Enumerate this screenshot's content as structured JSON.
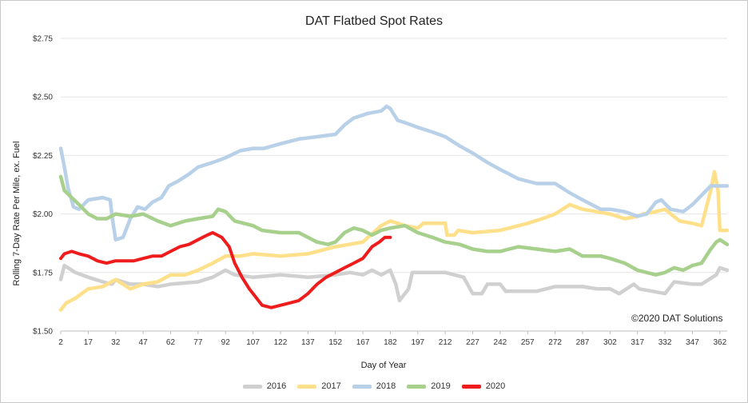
{
  "chart_data": {
    "type": "line",
    "title": "DAT Flatbed Spot Rates",
    "xlabel": "Day of Year",
    "ylabel": "Rolling 7-Day Rate Per Mile, ex. Fuel",
    "copyright": "©2020 DAT Solutions",
    "xlim": [
      2,
      366
    ],
    "ylim": [
      1.5,
      2.75
    ],
    "x_ticks": [
      2,
      17,
      32,
      47,
      62,
      77,
      92,
      107,
      122,
      137,
      152,
      167,
      182,
      197,
      212,
      227,
      242,
      257,
      272,
      287,
      302,
      317,
      332,
      347,
      362
    ],
    "y_ticks": [
      {
        "value": 1.5,
        "label": "$1.50"
      },
      {
        "value": 1.75,
        "label": "$1.75"
      },
      {
        "value": 2.0,
        "label": "$2.00"
      },
      {
        "value": 2.25,
        "label": "$2.25"
      },
      {
        "value": 2.5,
        "label": "$2.50"
      },
      {
        "value": 2.75,
        "label": "$2.75"
      }
    ],
    "grid": "horizontal",
    "legend_position": "bottom",
    "series": [
      {
        "name": "2016",
        "color": "#d0d0d0",
        "points": [
          [
            2,
            1.72
          ],
          [
            4,
            1.78
          ],
          [
            10,
            1.75
          ],
          [
            17,
            1.73
          ],
          [
            25,
            1.71
          ],
          [
            30,
            1.7
          ],
          [
            32,
            1.72
          ],
          [
            40,
            1.7
          ],
          [
            47,
            1.7
          ],
          [
            55,
            1.69
          ],
          [
            62,
            1.7
          ],
          [
            77,
            1.71
          ],
          [
            85,
            1.73
          ],
          [
            92,
            1.76
          ],
          [
            97,
            1.74
          ],
          [
            107,
            1.73
          ],
          [
            122,
            1.74
          ],
          [
            137,
            1.73
          ],
          [
            152,
            1.74
          ],
          [
            160,
            1.75
          ],
          [
            167,
            1.74
          ],
          [
            172,
            1.76
          ],
          [
            177,
            1.74
          ],
          [
            182,
            1.76
          ],
          [
            185,
            1.7
          ],
          [
            187,
            1.63
          ],
          [
            192,
            1.68
          ],
          [
            194,
            1.75
          ],
          [
            212,
            1.75
          ],
          [
            222,
            1.73
          ],
          [
            227,
            1.66
          ],
          [
            232,
            1.66
          ],
          [
            235,
            1.7
          ],
          [
            242,
            1.7
          ],
          [
            245,
            1.67
          ],
          [
            257,
            1.67
          ],
          [
            262,
            1.67
          ],
          [
            272,
            1.69
          ],
          [
            287,
            1.69
          ],
          [
            295,
            1.68
          ],
          [
            302,
            1.68
          ],
          [
            307,
            1.66
          ],
          [
            315,
            1.7
          ],
          [
            318,
            1.68
          ],
          [
            325,
            1.67
          ],
          [
            332,
            1.66
          ],
          [
            337,
            1.71
          ],
          [
            347,
            1.7
          ],
          [
            352,
            1.7
          ],
          [
            360,
            1.74
          ],
          [
            362,
            1.77
          ],
          [
            366,
            1.76
          ]
        ]
      },
      {
        "name": "2017",
        "color": "#ffe08a",
        "points": [
          [
            2,
            1.59
          ],
          [
            5,
            1.62
          ],
          [
            10,
            1.64
          ],
          [
            17,
            1.68
          ],
          [
            25,
            1.69
          ],
          [
            32,
            1.72
          ],
          [
            40,
            1.68
          ],
          [
            47,
            1.7
          ],
          [
            55,
            1.71
          ],
          [
            62,
            1.74
          ],
          [
            70,
            1.74
          ],
          [
            77,
            1.76
          ],
          [
            85,
            1.79
          ],
          [
            92,
            1.82
          ],
          [
            100,
            1.82
          ],
          [
            107,
            1.83
          ],
          [
            122,
            1.82
          ],
          [
            137,
            1.83
          ],
          [
            152,
            1.86
          ],
          [
            167,
            1.88
          ],
          [
            177,
            1.95
          ],
          [
            182,
            1.97
          ],
          [
            190,
            1.95
          ],
          [
            197,
            1.94
          ],
          [
            200,
            1.96
          ],
          [
            212,
            1.96
          ],
          [
            213,
            1.91
          ],
          [
            217,
            1.91
          ],
          [
            219,
            1.93
          ],
          [
            227,
            1.92
          ],
          [
            242,
            1.93
          ],
          [
            257,
            1.96
          ],
          [
            265,
            1.98
          ],
          [
            272,
            2.0
          ],
          [
            280,
            2.04
          ],
          [
            287,
            2.02
          ],
          [
            302,
            2.0
          ],
          [
            310,
            1.98
          ],
          [
            317,
            1.99
          ],
          [
            320,
            2.0
          ],
          [
            327,
            2.01
          ],
          [
            332,
            2.02
          ],
          [
            340,
            1.97
          ],
          [
            347,
            1.96
          ],
          [
            352,
            1.95
          ],
          [
            357,
            2.1
          ],
          [
            359,
            2.18
          ],
          [
            361,
            2.1
          ],
          [
            362,
            1.93
          ],
          [
            366,
            1.93
          ]
        ]
      },
      {
        "name": "2018",
        "color": "#b9d1e8",
        "points": [
          [
            2,
            2.28
          ],
          [
            4,
            2.2
          ],
          [
            6,
            2.11
          ],
          [
            9,
            2.03
          ],
          [
            12,
            2.02
          ],
          [
            17,
            2.06
          ],
          [
            25,
            2.07
          ],
          [
            29,
            2.06
          ],
          [
            30,
            1.99
          ],
          [
            32,
            1.89
          ],
          [
            36,
            1.9
          ],
          [
            40,
            1.98
          ],
          [
            44,
            2.03
          ],
          [
            48,
            2.02
          ],
          [
            52,
            2.05
          ],
          [
            57,
            2.07
          ],
          [
            61,
            2.12
          ],
          [
            66,
            2.14
          ],
          [
            72,
            2.17
          ],
          [
            77,
            2.2
          ],
          [
            85,
            2.22
          ],
          [
            92,
            2.24
          ],
          [
            100,
            2.27
          ],
          [
            107,
            2.28
          ],
          [
            113,
            2.28
          ],
          [
            122,
            2.3
          ],
          [
            132,
            2.32
          ],
          [
            142,
            2.33
          ],
          [
            152,
            2.34
          ],
          [
            157,
            2.38
          ],
          [
            162,
            2.41
          ],
          [
            170,
            2.43
          ],
          [
            177,
            2.44
          ],
          [
            180,
            2.46
          ],
          [
            182,
            2.45
          ],
          [
            186,
            2.4
          ],
          [
            190,
            2.39
          ],
          [
            197,
            2.37
          ],
          [
            205,
            2.35
          ],
          [
            212,
            2.33
          ],
          [
            220,
            2.29
          ],
          [
            227,
            2.26
          ],
          [
            235,
            2.22
          ],
          [
            242,
            2.19
          ],
          [
            252,
            2.15
          ],
          [
            262,
            2.13
          ],
          [
            272,
            2.13
          ],
          [
            280,
            2.09
          ],
          [
            287,
            2.06
          ],
          [
            297,
            2.02
          ],
          [
            302,
            2.02
          ],
          [
            310,
            2.01
          ],
          [
            317,
            1.99
          ],
          [
            322,
            2.0
          ],
          [
            327,
            2.05
          ],
          [
            330,
            2.06
          ],
          [
            335,
            2.02
          ],
          [
            342,
            2.01
          ],
          [
            347,
            2.04
          ],
          [
            352,
            2.08
          ],
          [
            357,
            2.12
          ],
          [
            362,
            2.12
          ],
          [
            366,
            2.12
          ]
        ]
      },
      {
        "name": "2019",
        "color": "#a8d08d",
        "points": [
          [
            2,
            2.16
          ],
          [
            4,
            2.1
          ],
          [
            8,
            2.07
          ],
          [
            12,
            2.04
          ],
          [
            17,
            2.0
          ],
          [
            22,
            1.98
          ],
          [
            27,
            1.98
          ],
          [
            32,
            2.0
          ],
          [
            40,
            1.99
          ],
          [
            47,
            2.0
          ],
          [
            55,
            1.97
          ],
          [
            62,
            1.95
          ],
          [
            70,
            1.97
          ],
          [
            77,
            1.98
          ],
          [
            85,
            1.99
          ],
          [
            88,
            2.02
          ],
          [
            92,
            2.01
          ],
          [
            97,
            1.97
          ],
          [
            107,
            1.95
          ],
          [
            112,
            1.93
          ],
          [
            122,
            1.92
          ],
          [
            132,
            1.92
          ],
          [
            142,
            1.88
          ],
          [
            148,
            1.87
          ],
          [
            152,
            1.88
          ],
          [
            157,
            1.92
          ],
          [
            162,
            1.94
          ],
          [
            167,
            1.93
          ],
          [
            172,
            1.91
          ],
          [
            177,
            1.93
          ],
          [
            182,
            1.94
          ],
          [
            190,
            1.95
          ],
          [
            197,
            1.92
          ],
          [
            205,
            1.9
          ],
          [
            212,
            1.88
          ],
          [
            220,
            1.87
          ],
          [
            227,
            1.85
          ],
          [
            235,
            1.84
          ],
          [
            242,
            1.84
          ],
          [
            252,
            1.86
          ],
          [
            262,
            1.85
          ],
          [
            272,
            1.84
          ],
          [
            280,
            1.85
          ],
          [
            287,
            1.82
          ],
          [
            297,
            1.82
          ],
          [
            302,
            1.81
          ],
          [
            310,
            1.79
          ],
          [
            317,
            1.76
          ],
          [
            322,
            1.75
          ],
          [
            327,
            1.74
          ],
          [
            332,
            1.75
          ],
          [
            337,
            1.77
          ],
          [
            342,
            1.76
          ],
          [
            347,
            1.78
          ],
          [
            352,
            1.79
          ],
          [
            357,
            1.85
          ],
          [
            360,
            1.88
          ],
          [
            362,
            1.89
          ],
          [
            366,
            1.87
          ]
        ]
      },
      {
        "name": "2020",
        "color": "#ee1c1c",
        "points": [
          [
            2,
            1.81
          ],
          [
            4,
            1.83
          ],
          [
            8,
            1.84
          ],
          [
            12,
            1.83
          ],
          [
            17,
            1.82
          ],
          [
            22,
            1.8
          ],
          [
            27,
            1.79
          ],
          [
            32,
            1.8
          ],
          [
            37,
            1.8
          ],
          [
            42,
            1.8
          ],
          [
            47,
            1.81
          ],
          [
            52,
            1.82
          ],
          [
            57,
            1.82
          ],
          [
            62,
            1.84
          ],
          [
            67,
            1.86
          ],
          [
            72,
            1.87
          ],
          [
            77,
            1.89
          ],
          [
            82,
            1.91
          ],
          [
            85,
            1.92
          ],
          [
            90,
            1.9
          ],
          [
            94,
            1.86
          ],
          [
            97,
            1.79
          ],
          [
            101,
            1.73
          ],
          [
            105,
            1.68
          ],
          [
            108,
            1.65
          ],
          [
            112,
            1.61
          ],
          [
            117,
            1.6
          ],
          [
            122,
            1.61
          ],
          [
            127,
            1.62
          ],
          [
            132,
            1.63
          ],
          [
            137,
            1.66
          ],
          [
            142,
            1.7
          ],
          [
            147,
            1.73
          ],
          [
            152,
            1.75
          ],
          [
            157,
            1.77
          ],
          [
            162,
            1.79
          ],
          [
            167,
            1.81
          ],
          [
            172,
            1.86
          ],
          [
            176,
            1.88
          ],
          [
            179,
            1.9
          ],
          [
            182,
            1.9
          ]
        ]
      }
    ]
  }
}
